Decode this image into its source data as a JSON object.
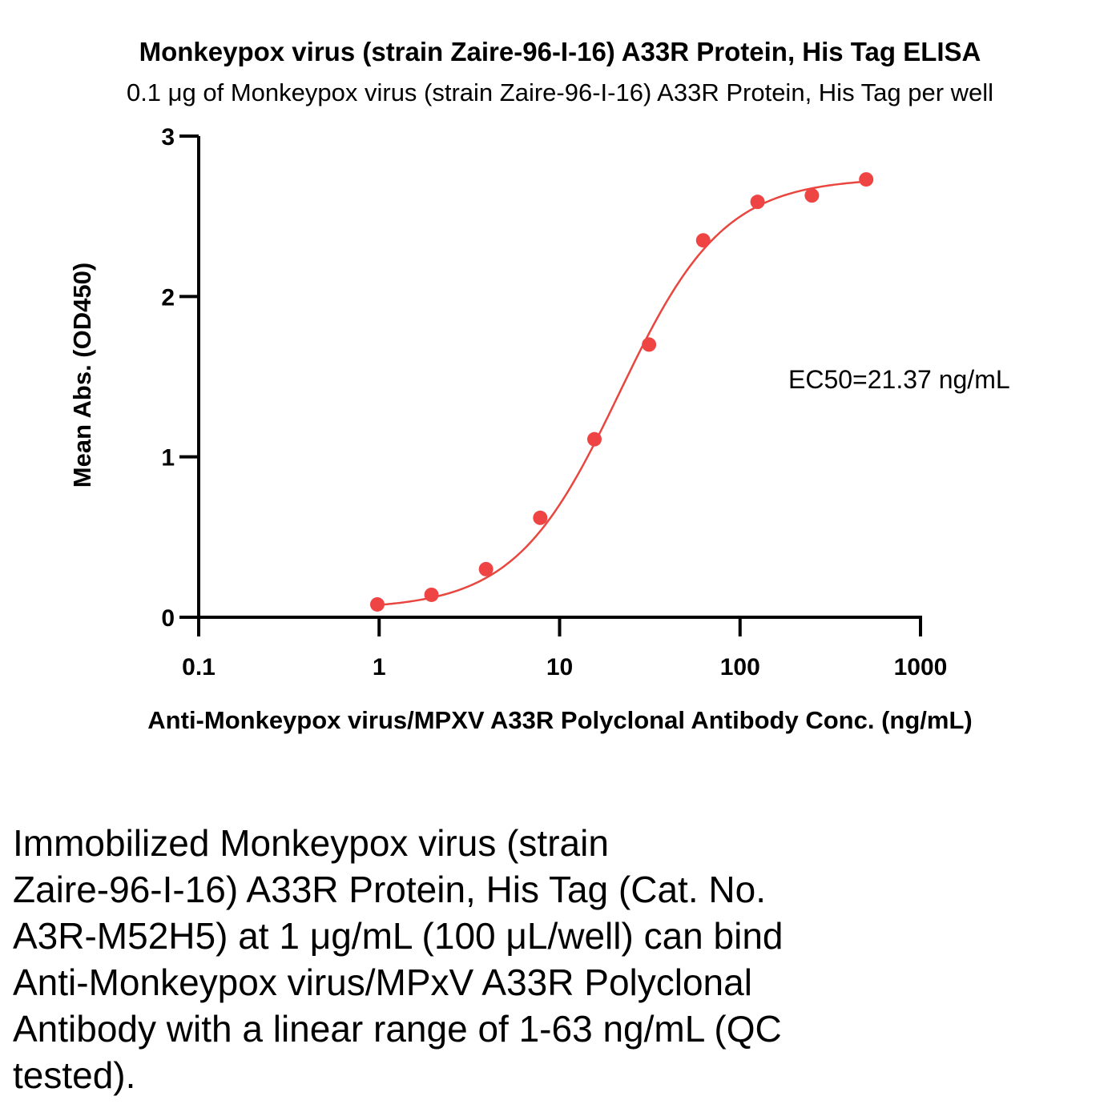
{
  "chart_data": {
    "type": "scatter",
    "title": "Monkeypox virus (strain Zaire-96-I-16) A33R Protein, His Tag ELISA",
    "subtitle": "0.1 μg of Monkeypox virus (strain Zaire-96-I-16) A33R Protein, His Tag per well",
    "xlabel": "Anti-Monkeypox virus/MPXV A33R Polyclonal Antibody Conc. (ng/mL)",
    "ylabel": "Mean Abs. (OD450)",
    "x_scale": "log",
    "xlim": [
      0.1,
      1000
    ],
    "ylim": [
      0,
      3
    ],
    "x_ticks": [
      0.1,
      1,
      10,
      100,
      1000
    ],
    "x_tick_labels": [
      "0.1",
      "1",
      "10",
      "100",
      "1000"
    ],
    "y_ticks": [
      0,
      1,
      2,
      3
    ],
    "y_tick_labels": [
      "0",
      "1",
      "2",
      "3"
    ],
    "grid": false,
    "series": [
      {
        "color": "#ef4444",
        "x": [
          0.977,
          1.95,
          3.91,
          7.81,
          15.6,
          31.3,
          62.5,
          125,
          250,
          500
        ],
        "y": [
          0.08,
          0.14,
          0.3,
          0.62,
          1.11,
          1.7,
          2.35,
          2.59,
          2.63,
          2.73
        ]
      }
    ],
    "fit": {
      "model": "4PL",
      "bottom": 0.05,
      "top": 2.74,
      "ec50": 21.37,
      "hill": 1.5,
      "color": "#e8463f"
    },
    "annotation": "EC50=21.37 ng/mL"
  },
  "caption": "Immobilized Monkeypox virus (strain\nZaire-96-I-16) A33R Protein, His Tag (Cat. No.\nA3R-M52H5) at 1 μg/mL (100 μL/well) can bind\nAnti-Monkeypox virus/MPxV A33R Polyclonal\nAntibody with a linear range of 1-63 ng/mL (QC\ntested)."
}
